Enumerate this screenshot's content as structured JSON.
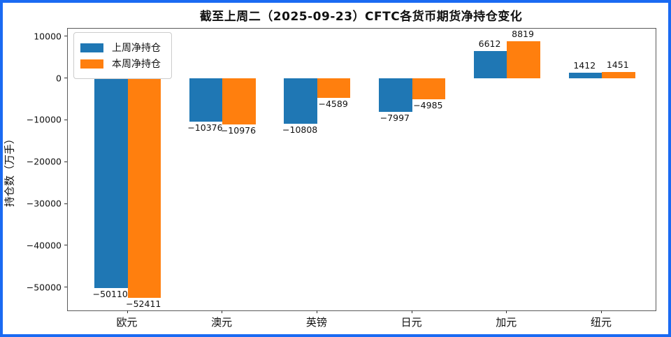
{
  "title": "截至上周二（2025-09-23）CFTC各货币期货净持仓变化",
  "chart_data": {
    "type": "bar",
    "categories": [
      "欧元",
      "澳元",
      "英镑",
      "日元",
      "加元",
      "纽元"
    ],
    "series": [
      {
        "name": "上周净持仓",
        "color": "#1f77b4",
        "values": [
          -50110,
          -10376,
          -10808,
          -7997,
          6612,
          1412
        ]
      },
      {
        "name": "本周净持仓",
        "color": "#ff7f0e",
        "values": [
          -52411,
          -10976,
          -4589,
          -4985,
          8819,
          1451
        ]
      }
    ],
    "ylabel": "持仓数（万手）",
    "xlabel": "",
    "ylim": [
      -55500,
      11900
    ],
    "yticks": [
      10000,
      0,
      -10000,
      -20000,
      -30000,
      -40000,
      -50000
    ],
    "grid": false,
    "legend_position": "upper left",
    "bar_value_labels": true
  },
  "colors": {
    "frame_border": "#1a6af2",
    "axis_spine": "#5a5a5a",
    "text": "#111111",
    "series_prev_week": "#1f77b4",
    "series_this_week": "#ff7f0e"
  }
}
